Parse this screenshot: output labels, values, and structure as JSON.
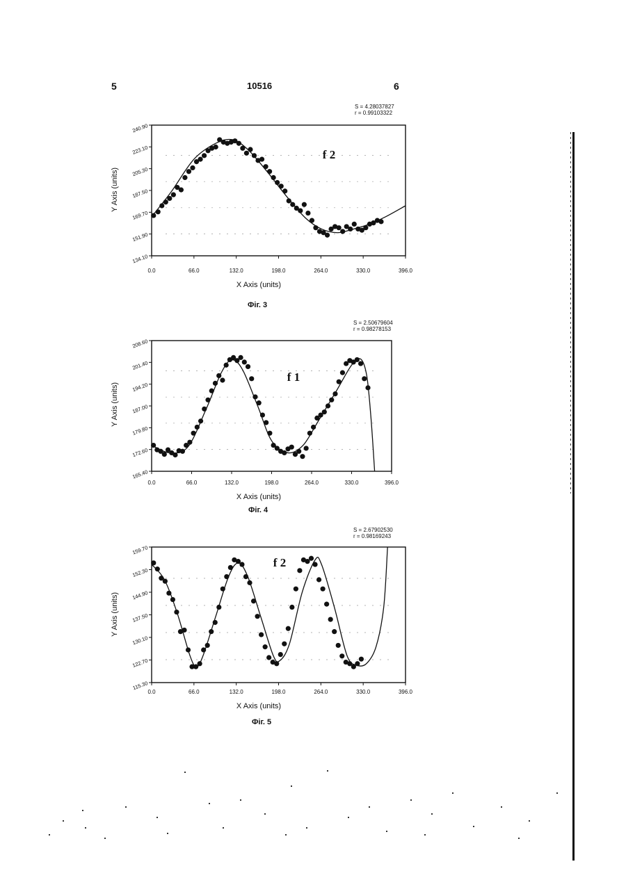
{
  "page": {
    "left_number": "5",
    "center_number": "10516",
    "right_number": "6"
  },
  "chart_data": [
    {
      "type": "scatter",
      "fit": "line",
      "stats": [
        "S = 4.28037827",
        "r = 0.99103322"
      ],
      "label": "f 2",
      "caption": "Фіг. 3",
      "xlabel": "X Axis (units)",
      "ylabel": "Y Axis (units)",
      "xlim": [
        0,
        396
      ],
      "ylim": [
        134.1,
        240.9
      ],
      "xticks": [
        "0.0",
        "66.0",
        "132.0",
        "198.0",
        "264.0",
        "330.0",
        "396.0"
      ],
      "yticks": [
        "134.10",
        "151.90",
        "169.70",
        "187.50",
        "205.30",
        "223.10",
        "240.90"
      ],
      "series": [
        {
          "values": [
            [
              3,
              167
            ],
            [
              10,
              170
            ],
            [
              16,
              175
            ],
            [
              22,
              178
            ],
            [
              28,
              181
            ],
            [
              34,
              184
            ],
            [
              40,
              190
            ],
            [
              46,
              188
            ],
            [
              52,
              198
            ],
            [
              58,
              203
            ],
            [
              64,
              206
            ],
            [
              70,
              211
            ],
            [
              76,
              213
            ],
            [
              82,
              216
            ],
            [
              88,
              220
            ],
            [
              94,
              222
            ],
            [
              100,
              223
            ],
            [
              106,
              229
            ],
            [
              112,
              227
            ],
            [
              118,
              226
            ],
            [
              124,
              227
            ],
            [
              130,
              228
            ],
            [
              136,
              226
            ],
            [
              142,
              222
            ],
            [
              148,
              218
            ],
            [
              154,
              221
            ],
            [
              160,
              216
            ],
            [
              166,
              212
            ],
            [
              172,
              213
            ],
            [
              178,
              207
            ],
            [
              184,
              203
            ],
            [
              190,
              198
            ],
            [
              196,
              194
            ],
            [
              202,
              191
            ],
            [
              208,
              187
            ],
            [
              214,
              179
            ],
            [
              220,
              176
            ],
            [
              226,
              173
            ],
            [
              232,
              171
            ],
            [
              238,
              176
            ],
            [
              244,
              169
            ],
            [
              250,
              163
            ],
            [
              256,
              157
            ],
            [
              262,
              154
            ],
            [
              268,
              153
            ],
            [
              274,
              151
            ],
            [
              280,
              156
            ],
            [
              286,
              158
            ],
            [
              292,
              157
            ],
            [
              298,
              154
            ],
            [
              304,
              158
            ],
            [
              310,
              156
            ],
            [
              316,
              160
            ],
            [
              322,
              156
            ],
            [
              328,
              155
            ],
            [
              334,
              157
            ],
            [
              340,
              160
            ],
            [
              346,
              161
            ],
            [
              352,
              163
            ],
            [
              358,
              162
            ]
          ]
        }
      ]
    },
    {
      "type": "scatter",
      "fit": "line",
      "stats": [
        "S = 2.50679604",
        "r = 0.98278153"
      ],
      "label": "f 1",
      "caption": "Фіг. 4",
      "xlabel": "X Axis (units)",
      "ylabel": "Y Axis (units)",
      "xlim": [
        0,
        396
      ],
      "ylim": [
        165.4,
        208.6
      ],
      "xticks": [
        "0.0",
        "66.0",
        "132.0",
        "198.0",
        "264.0",
        "330.0",
        "396.0"
      ],
      "yticks": [
        "165.40",
        "172.60",
        "179.80",
        "187.00",
        "194.20",
        "201.40",
        "208.60"
      ],
      "series": [
        {
          "values": [
            [
              3,
              174
            ],
            [
              9,
              172.5
            ],
            [
              15,
              172
            ],
            [
              21,
              171
            ],
            [
              27,
              172.5
            ],
            [
              33,
              171.5
            ],
            [
              39,
              170.8
            ],
            [
              45,
              172.2
            ],
            [
              51,
              172
            ],
            [
              57,
              174
            ],
            [
              63,
              175
            ],
            [
              69,
              178
            ],
            [
              75,
              180
            ],
            [
              81,
              182
            ],
            [
              87,
              186
            ],
            [
              93,
              189
            ],
            [
              99,
              192
            ],
            [
              105,
              194.5
            ],
            [
              111,
              197
            ],
            [
              117,
              195.5
            ],
            [
              123,
              200.5
            ],
            [
              129,
              202.3
            ],
            [
              135,
              203
            ],
            [
              141,
              202
            ],
            [
              147,
              203
            ],
            [
              153,
              201.5
            ],
            [
              159,
              200
            ],
            [
              165,
              196
            ],
            [
              171,
              190
            ],
            [
              177,
              188
            ],
            [
              183,
              184
            ],
            [
              189,
              181.5
            ],
            [
              195,
              178
            ],
            [
              201,
              174
            ],
            [
              207,
              173
            ],
            [
              213,
              172
            ],
            [
              219,
              171.5
            ],
            [
              225,
              172.8
            ],
            [
              231,
              173.4
            ],
            [
              237,
              171
            ],
            [
              243,
              172
            ],
            [
              249,
              170.3
            ],
            [
              255,
              173
            ],
            [
              261,
              178
            ],
            [
              267,
              180
            ],
            [
              273,
              183
            ],
            [
              279,
              184
            ],
            [
              285,
              185
            ],
            [
              291,
              187
            ],
            [
              297,
              189
            ],
            [
              303,
              191
            ],
            [
              309,
              195
            ],
            [
              315,
              198
            ],
            [
              321,
              201
            ],
            [
              327,
              202
            ],
            [
              333,
              201.5
            ],
            [
              339,
              202.3
            ],
            [
              345,
              201
            ],
            [
              351,
              196
            ],
            [
              357,
              193
            ]
          ]
        }
      ]
    },
    {
      "type": "scatter",
      "fit": "line",
      "stats": [
        "S = 2.67902530",
        "r = 0.98169243"
      ],
      "label": "f 2",
      "caption": "Фіг. 5",
      "xlabel": "X Axis (units)",
      "ylabel": "Y Axis (units)",
      "xlim": [
        0,
        396
      ],
      "ylim": [
        115.3,
        159.7
      ],
      "xticks": [
        "0.0",
        "66.0",
        "132.0",
        "198.0",
        "264.0",
        "330.0",
        "396.0"
      ],
      "yticks": [
        "115.30",
        "122.70",
        "130.10",
        "137.50",
        "144.90",
        "152.30",
        "159.70"
      ],
      "series": [
        {
          "values": [
            [
              3,
              154.5
            ],
            [
              9,
              152.5
            ],
            [
              15,
              149.5
            ],
            [
              21,
              148.5
            ],
            [
              27,
              144.6
            ],
            [
              33,
              142.5
            ],
            [
              39,
              138.4
            ],
            [
              45,
              132
            ],
            [
              51,
              132.5
            ],
            [
              57,
              126
            ],
            [
              63,
              120.5
            ],
            [
              69,
              120.5
            ],
            [
              75,
              121.5
            ],
            [
              81,
              126
            ],
            [
              87,
              127.5
            ],
            [
              93,
              132
            ],
            [
              99,
              135
            ],
            [
              105,
              140
            ],
            [
              111,
              146
            ],
            [
              117,
              150
            ],
            [
              123,
              153
            ],
            [
              129,
              155.5
            ],
            [
              135,
              155
            ],
            [
              141,
              154
            ],
            [
              147,
              150
            ],
            [
              153,
              148
            ],
            [
              159,
              142
            ],
            [
              165,
              137
            ],
            [
              171,
              131
            ],
            [
              177,
              127
            ],
            [
              183,
              123.5
            ],
            [
              189,
              122
            ],
            [
              195,
              121.5
            ],
            [
              201,
              124.5
            ],
            [
              207,
              128
            ],
            [
              213,
              133
            ],
            [
              219,
              140
            ],
            [
              225,
              146
            ],
            [
              231,
              152
            ],
            [
              237,
              155.5
            ],
            [
              243,
              155
            ],
            [
              249,
              156
            ],
            [
              255,
              154
            ],
            [
              261,
              149
            ],
            [
              267,
              146
            ],
            [
              273,
              141
            ],
            [
              279,
              136
            ],
            [
              285,
              132
            ],
            [
              291,
              127.5
            ],
            [
              297,
              124
            ],
            [
              303,
              122
            ],
            [
              309,
              121.5
            ],
            [
              315,
              120.5
            ],
            [
              321,
              121.5
            ],
            [
              327,
              123
            ]
          ]
        }
      ]
    }
  ]
}
